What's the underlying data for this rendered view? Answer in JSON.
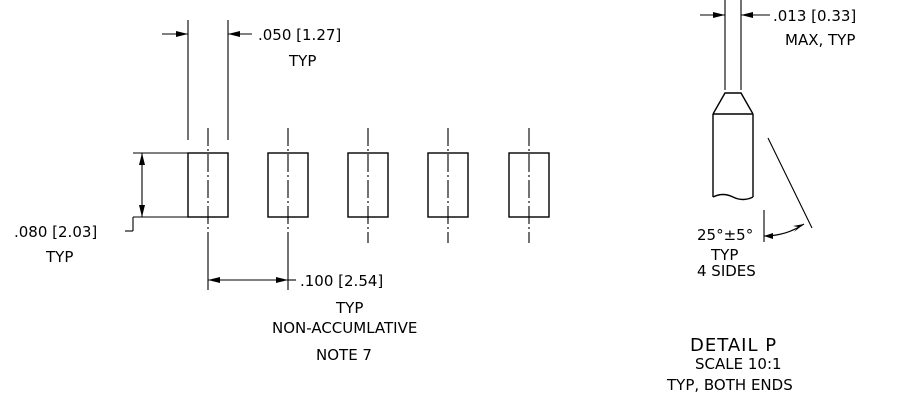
{
  "pitch_view": {
    "width_dim": {
      "value": ".050 [1.27]",
      "note": "TYP"
    },
    "height_dim": {
      "value": ".080 [2.03]",
      "note": "TYP"
    },
    "pitch_dim": {
      "value": ".100 [2.54]",
      "note1": "TYP",
      "note2": "NON-ACCUMLATIVE",
      "note3": "NOTE 7"
    },
    "pad_count": 5
  },
  "detail_view": {
    "tip_dim": {
      "value": ".013 [0.33]",
      "note": "MAX, TYP"
    },
    "angle_dim": {
      "value": "25°±5°",
      "note1": "TYP",
      "note2": "4 SIDES"
    },
    "title": "DETAIL  P",
    "scale": "SCALE 10:1",
    "subnote": "TYP, BOTH ENDS"
  }
}
